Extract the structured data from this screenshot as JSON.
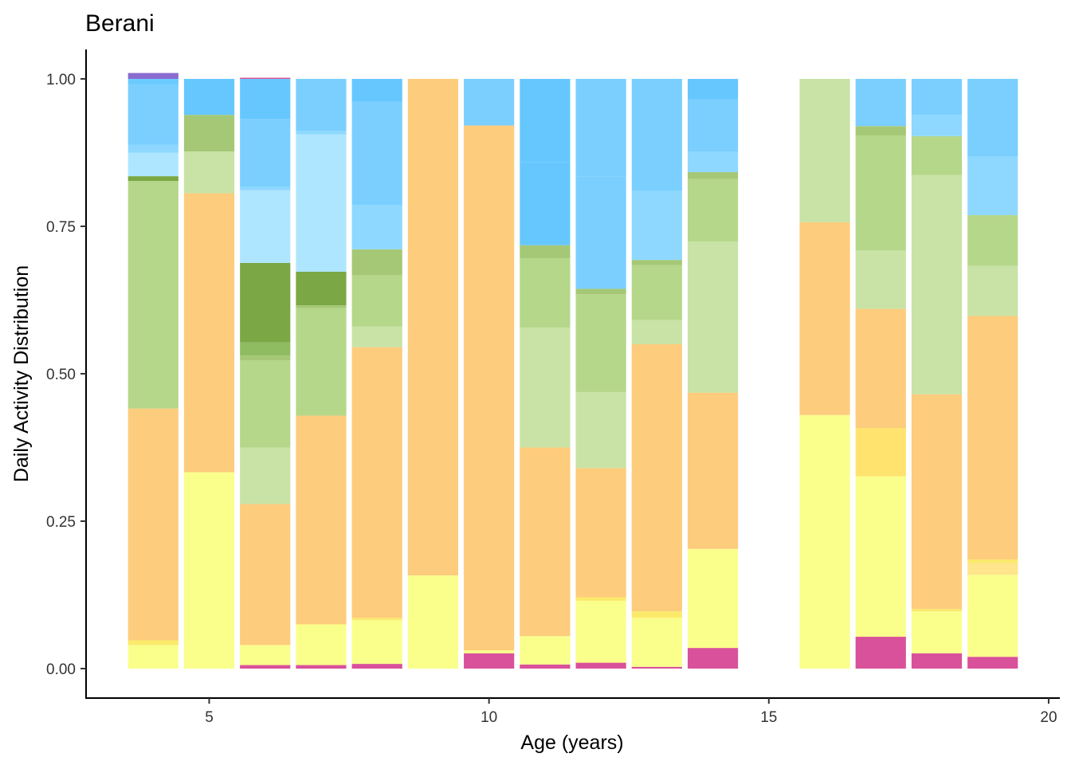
{
  "chart_data": {
    "type": "bar",
    "stacked": true,
    "title": "Berani",
    "xlabel": "Age (years)",
    "ylabel": "Daily Activity Distribution",
    "xlim": [
      2.8,
      20.2
    ],
    "ylim": [
      -0.05,
      1.05
    ],
    "x_ticks": [
      5,
      10,
      15,
      20
    ],
    "y_ticks": [
      0.0,
      0.25,
      0.5,
      0.75,
      1.0
    ],
    "y_tick_labels": [
      "0.00",
      "0.25",
      "0.50",
      "0.75",
      "1.00"
    ],
    "grid": false,
    "legend": "none",
    "bar_width": 0.9,
    "bars": [
      {
        "x": 4,
        "segments": [
          {
            "value": 0.04,
            "color": "#FAFF8C"
          },
          {
            "value": 0.008,
            "color": "#FBEA6A"
          },
          {
            "value": 0.393,
            "color": "#FDCC7C"
          },
          {
            "value": 0.386,
            "color": "#B5D78A"
          },
          {
            "value": 0.008,
            "color": "#7BA845"
          },
          {
            "value": 0.04,
            "color": "#AFE6FF"
          },
          {
            "value": 0.013,
            "color": "#8ED8FF"
          },
          {
            "value": 0.102,
            "color": "#7ACFFF"
          },
          {
            "value": 0.01,
            "color": "#6BCBFF"
          },
          {
            "value": 0.01,
            "color": "#8A6CD0"
          }
        ]
      },
      {
        "x": 5,
        "segments": [
          {
            "value": 0.333,
            "color": "#FAFF8C"
          },
          {
            "value": 0.473,
            "color": "#FDCC7C"
          },
          {
            "value": 0.071,
            "color": "#C8E3A5"
          },
          {
            "value": 0.062,
            "color": "#A5C876"
          },
          {
            "value": 0.061,
            "color": "#66C7FF"
          }
        ]
      },
      {
        "x": 6,
        "segments": [
          {
            "value": 0.006,
            "color": "#D9519A"
          },
          {
            "value": 0.034,
            "color": "#FAFF8C"
          },
          {
            "value": 0.239,
            "color": "#FDCC7C"
          },
          {
            "value": 0.096,
            "color": "#C8E3A5"
          },
          {
            "value": 0.148,
            "color": "#B5D78A"
          },
          {
            "value": 0.008,
            "color": "#A5C876"
          },
          {
            "value": 0.022,
            "color": "#8FBC61"
          },
          {
            "value": 0.135,
            "color": "#7BA845"
          },
          {
            "value": 0.123,
            "color": "#AFE6FF"
          },
          {
            "value": 0.006,
            "color": "#8ED8FF"
          },
          {
            "value": 0.115,
            "color": "#7ACFFF"
          },
          {
            "value": 0.068,
            "color": "#66C7FF"
          },
          {
            "value": 0.002,
            "color": "#D9519A"
          }
        ]
      },
      {
        "x": 7,
        "segments": [
          {
            "value": 0.006,
            "color": "#D9519A"
          },
          {
            "value": 0.069,
            "color": "#FAFF8C"
          },
          {
            "value": 0.354,
            "color": "#FDCC7C"
          },
          {
            "value": 0.182,
            "color": "#B5D78A"
          },
          {
            "value": 0.005,
            "color": "#A5C876"
          },
          {
            "value": 0.057,
            "color": "#7BA845"
          },
          {
            "value": 0.233,
            "color": "#AFE6FF"
          },
          {
            "value": 0.006,
            "color": "#8ED8FF"
          },
          {
            "value": 0.088,
            "color": "#7ACFFF"
          }
        ]
      },
      {
        "x": 8,
        "segments": [
          {
            "value": 0.008,
            "color": "#D9519A"
          },
          {
            "value": 0.074,
            "color": "#FAFF8C"
          },
          {
            "value": 0.004,
            "color": "#FBEA6A"
          },
          {
            "value": 0.459,
            "color": "#FDCC7C"
          },
          {
            "value": 0.035,
            "color": "#C8E3A5"
          },
          {
            "value": 0.087,
            "color": "#B5D78A"
          },
          {
            "value": 0.044,
            "color": "#A5C876"
          },
          {
            "value": 0.075,
            "color": "#8ED8FF"
          },
          {
            "value": 0.175,
            "color": "#7ACFFF"
          },
          {
            "value": 0.039,
            "color": "#66C7FF"
          }
        ]
      },
      {
        "x": 9,
        "segments": [
          {
            "value": 0.158,
            "color": "#FAFF8C"
          },
          {
            "value": 0.842,
            "color": "#FDCC7C"
          }
        ]
      },
      {
        "x": 10,
        "segments": [
          {
            "value": 0.026,
            "color": "#D9519A"
          },
          {
            "value": 0.005,
            "color": "#FAFF8C"
          },
          {
            "value": 0.89,
            "color": "#FDCC7C"
          },
          {
            "value": 0.079,
            "color": "#7ACFFF"
          }
        ]
      },
      {
        "x": 11,
        "segments": [
          {
            "value": 0.007,
            "color": "#D9519A"
          },
          {
            "value": 0.048,
            "color": "#FAFF8C"
          },
          {
            "value": 0.32,
            "color": "#FDCC7C"
          },
          {
            "value": 0.203,
            "color": "#C8E3A5"
          },
          {
            "value": 0.118,
            "color": "#B5D78A"
          },
          {
            "value": 0.022,
            "color": "#A5C876"
          },
          {
            "value": 0.141,
            "color": "#66C7FF"
          },
          {
            "value": 0.141,
            "color": "#66C7FF"
          }
        ]
      },
      {
        "x": 12,
        "segments": [
          {
            "value": 0.01,
            "color": "#D9519A"
          },
          {
            "value": 0.105,
            "color": "#FAFF8C"
          },
          {
            "value": 0.006,
            "color": "#FBEA6A"
          },
          {
            "value": 0.219,
            "color": "#FDCC7C"
          },
          {
            "value": 0.129,
            "color": "#C8E3A5"
          },
          {
            "value": 0.166,
            "color": "#B5D78A"
          },
          {
            "value": 0.009,
            "color": "#A5C876"
          },
          {
            "value": 0.19,
            "color": "#7ACFFF"
          },
          {
            "value": 0.166,
            "color": "#7ACFFF"
          }
        ]
      },
      {
        "x": 13,
        "segments": [
          {
            "value": 0.003,
            "color": "#D9519A"
          },
          {
            "value": 0.083,
            "color": "#FAFF8C"
          },
          {
            "value": 0.011,
            "color": "#FBEA6A"
          },
          {
            "value": 0.453,
            "color": "#FDCC7C"
          },
          {
            "value": 0.041,
            "color": "#C8E3A5"
          },
          {
            "value": 0.093,
            "color": "#B5D78A"
          },
          {
            "value": 0.009,
            "color": "#A5C876"
          },
          {
            "value": 0.117,
            "color": "#8ED8FF"
          },
          {
            "value": 0.19,
            "color": "#7ACFFF"
          }
        ]
      },
      {
        "x": 14,
        "segments": [
          {
            "value": 0.035,
            "color": "#D9519A"
          },
          {
            "value": 0.168,
            "color": "#FAFF8C"
          },
          {
            "value": 0.265,
            "color": "#FDCC7C"
          },
          {
            "value": 0.256,
            "color": "#C8E3A5"
          },
          {
            "value": 0.106,
            "color": "#B5D78A"
          },
          {
            "value": 0.012,
            "color": "#A5C876"
          },
          {
            "value": 0.035,
            "color": "#8ED8FF"
          },
          {
            "value": 0.088,
            "color": "#7ACFFF"
          },
          {
            "value": 0.035,
            "color": "#66C7FF"
          }
        ]
      },
      {
        "x": 16,
        "segments": [
          {
            "value": 0.43,
            "color": "#FAFF8C"
          },
          {
            "value": 0.327,
            "color": "#FDCC7C"
          },
          {
            "value": 0.243,
            "color": "#C8E3A5"
          }
        ]
      },
      {
        "x": 17,
        "segments": [
          {
            "value": 0.054,
            "color": "#D9519A"
          },
          {
            "value": 0.272,
            "color": "#FAFF8C"
          },
          {
            "value": 0.082,
            "color": "#FFE36E"
          },
          {
            "value": 0.202,
            "color": "#FDCC7C"
          },
          {
            "value": 0.099,
            "color": "#C8E3A5"
          },
          {
            "value": 0.195,
            "color": "#B5D78A"
          },
          {
            "value": 0.016,
            "color": "#A5C876"
          },
          {
            "value": 0.08,
            "color": "#7ACFFF"
          }
        ]
      },
      {
        "x": 18,
        "segments": [
          {
            "value": 0.026,
            "color": "#D9519A"
          },
          {
            "value": 0.071,
            "color": "#FAFF8C"
          },
          {
            "value": 0.004,
            "color": "#FBEA6A"
          },
          {
            "value": 0.364,
            "color": "#FDCC7C"
          },
          {
            "value": 0.372,
            "color": "#C8E3A5"
          },
          {
            "value": 0.066,
            "color": "#B5D78A"
          },
          {
            "value": 0.036,
            "color": "#8ED8FF"
          },
          {
            "value": 0.061,
            "color": "#7ACFFF"
          }
        ]
      },
      {
        "x": 19,
        "segments": [
          {
            "value": 0.02,
            "color": "#D9519A"
          },
          {
            "value": 0.139,
            "color": "#FAFF8C"
          },
          {
            "value": 0.02,
            "color": "#FFE58C"
          },
          {
            "value": 0.006,
            "color": "#FBEA6A"
          },
          {
            "value": 0.413,
            "color": "#FDCC7C"
          },
          {
            "value": 0.085,
            "color": "#C8E3A5"
          },
          {
            "value": 0.086,
            "color": "#B5D78A"
          },
          {
            "value": 0.099,
            "color": "#8ED8FF"
          },
          {
            "value": 0.132,
            "color": "#7ACFFF"
          }
        ]
      }
    ]
  }
}
